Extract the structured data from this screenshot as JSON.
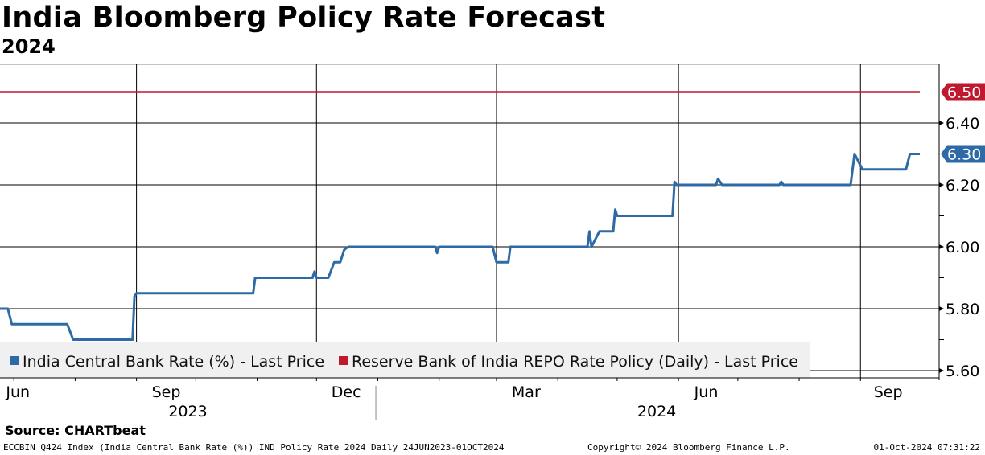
{
  "title": "India Bloomberg Policy Rate Forecast",
  "subtitle": "2024",
  "source": "Source: CHARTbeat",
  "footer": {
    "left": "ECCBIN Q424 Index (India Central Bank Rate (%)) IND Policy Rate 2024  Daily 24JUN2023-01OCT2024",
    "center": "Copyright© 2024 Bloomberg Finance L.P.",
    "right": "01-Oct-2024 07:31:22"
  },
  "chart_data": {
    "type": "line",
    "title": "India Bloomberg Policy Rate Forecast",
    "subtitle": "2024",
    "x_unit": "days since 24 Jun 2023",
    "xlim": [
      0,
      465
    ],
    "ylim": [
      5.57,
      6.67
    ],
    "y_ticks": [
      "5.60",
      "5.80",
      "6.00",
      "6.20",
      "6.40"
    ],
    "y_tick_values": [
      5.6,
      5.8,
      6.0,
      6.2,
      6.4
    ],
    "x_month_ticks": [
      7,
      38,
      69,
      99,
      130,
      160,
      191,
      222,
      251,
      282,
      312,
      343,
      373,
      404,
      435
    ],
    "x_labels": [
      {
        "label": "Jun",
        "x": 3
      },
      {
        "label": "Sep",
        "x": 84
      },
      {
        "label": "Dec",
        "x": 175
      },
      {
        "label": "Mar",
        "x": 266
      },
      {
        "label": "Jun",
        "x": 357
      },
      {
        "label": "Sep",
        "x": 449
      }
    ],
    "year_labels": [
      {
        "label": "2023",
        "x": 95
      },
      {
        "label": "2024",
        "x": 332
      }
    ],
    "year_divider_x": 190,
    "grid": true,
    "legend_position": "bottom-left",
    "series": [
      {
        "name": "India Central Bank Rate (%) - Last Price",
        "color": "#2e6aa6",
        "last_value_label": "6.30",
        "points": [
          [
            0,
            5.8
          ],
          [
            4,
            5.8
          ],
          [
            6,
            5.75
          ],
          [
            34,
            5.75
          ],
          [
            37,
            5.7
          ],
          [
            67,
            5.7
          ],
          [
            68,
            5.84
          ],
          [
            69,
            5.85
          ],
          [
            128,
            5.85
          ],
          [
            129,
            5.9
          ],
          [
            158,
            5.9
          ],
          [
            159,
            5.92
          ],
          [
            160,
            5.9
          ],
          [
            166,
            5.9
          ],
          [
            169,
            5.95
          ],
          [
            172,
            5.95
          ],
          [
            174,
            5.99
          ],
          [
            176,
            6.0
          ],
          [
            220,
            6.0
          ],
          [
            221,
            5.98
          ],
          [
            222,
            6.0
          ],
          [
            249,
            6.0
          ],
          [
            251,
            5.95
          ],
          [
            257,
            5.95
          ],
          [
            258,
            6.0
          ],
          [
            297,
            6.0
          ],
          [
            298,
            6.05
          ],
          [
            299,
            6.0
          ],
          [
            303,
            6.05
          ],
          [
            310,
            6.05
          ],
          [
            311,
            6.12
          ],
          [
            312,
            6.1
          ],
          [
            340,
            6.1
          ],
          [
            341,
            6.21
          ],
          [
            342,
            6.2
          ],
          [
            362,
            6.2
          ],
          [
            363,
            6.22
          ],
          [
            365,
            6.2
          ],
          [
            394,
            6.2
          ],
          [
            395,
            6.21
          ],
          [
            396,
            6.2
          ],
          [
            430,
            6.2
          ],
          [
            432,
            6.3
          ],
          [
            436,
            6.25
          ],
          [
            458,
            6.25
          ],
          [
            460,
            6.3
          ],
          [
            465,
            6.3
          ]
        ]
      },
      {
        "name": "Reserve Bank of India REPO Rate Policy (Daily) - Last Price",
        "color": "#c0182f",
        "last_value_label": "6.50",
        "points": [
          [
            0,
            6.5
          ],
          [
            465,
            6.5
          ]
        ]
      }
    ]
  }
}
